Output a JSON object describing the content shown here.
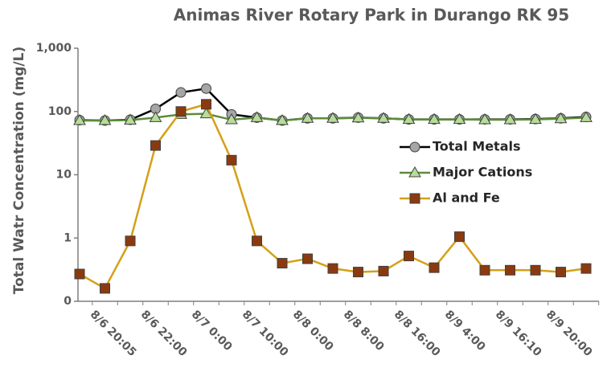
{
  "chart_data": {
    "type": "line",
    "title": "Animas River Rotary Park in Durango RK 95",
    "y_label": "Total Watr Concentration (mg/L)",
    "categories": [
      null,
      "8/6 20:05",
      null,
      "8/6 22:00",
      null,
      "8/7 0:00",
      null,
      "8/7 10:00",
      null,
      "8/8 0:00",
      null,
      "8/8 8:00",
      null,
      "8/8 16:00",
      null,
      "8/9 4:00",
      null,
      "8/9 16:10",
      null,
      "8/9 20:00",
      null
    ],
    "series": [
      {
        "name": "Total Metals",
        "color": "#000000",
        "marker_color": "#a6a6a6",
        "marker": "circle",
        "values": [
          73,
          72,
          74,
          110,
          200,
          230,
          90,
          80,
          72,
          78,
          78,
          80,
          78,
          75,
          75,
          75,
          75,
          75,
          76,
          78,
          82
        ]
      },
      {
        "name": "Major Cations",
        "color": "#5b8c3a",
        "marker_color": "#b6dc9a",
        "marker": "triangle",
        "values": [
          72,
          72,
          73,
          80,
          90,
          92,
          74,
          80,
          72,
          78,
          78,
          79,
          78,
          75,
          75,
          75,
          74,
          74,
          75,
          77,
          80
        ]
      },
      {
        "name": "Al and Fe",
        "color": "#d4a017",
        "marker_color": "#8b3a0f",
        "marker": "square",
        "values": [
          0.27,
          0.16,
          0.9,
          29,
          100,
          130,
          17,
          0.9,
          0.4,
          0.47,
          0.33,
          0.29,
          0.3,
          0.52,
          0.34,
          1.05,
          0.31,
          0.31,
          0.31,
          0.29,
          0.33
        ]
      }
    ],
    "ylim": [
      0.1,
      1000
    ],
    "yticks": [
      {
        "value": 0.1,
        "label": "0"
      },
      1,
      10,
      100,
      {
        "value": 1000,
        "label": "1,000"
      }
    ],
    "log_y": true,
    "grid": false,
    "legend": "right"
  }
}
